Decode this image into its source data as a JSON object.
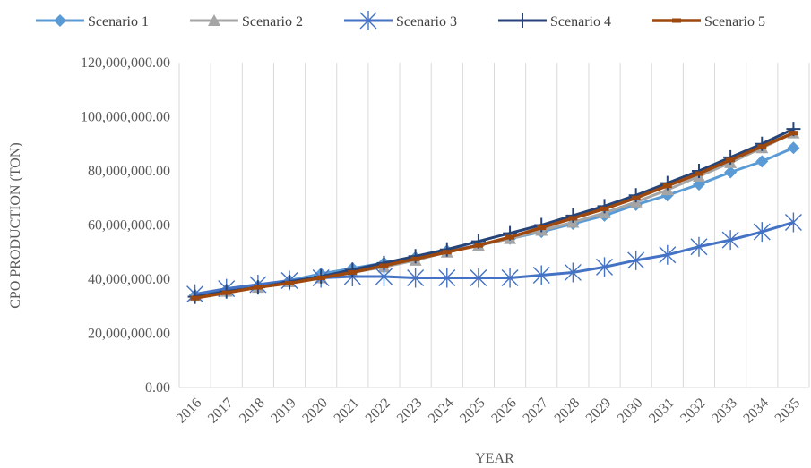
{
  "chart_data": {
    "type": "line",
    "title": "",
    "xlabel": "YEAR",
    "ylabel": "CPO PRODUCTION (TON)",
    "ylim": [
      0,
      120000000
    ],
    "y_ticks": [
      0,
      20000000,
      40000000,
      60000000,
      80000000,
      100000000,
      120000000
    ],
    "y_tick_labels": [
      "0.00",
      "20,000,000.00",
      "40,000,000.00",
      "60,000,000.00",
      "80,000,000.00",
      "100,000,000.00",
      "120,000,000.00"
    ],
    "grid": "vertical",
    "legend_position": "top",
    "categories": [
      "2016",
      "2017",
      "2018",
      "2019",
      "2020",
      "2021",
      "2022",
      "2023",
      "2024",
      "2025",
      "2026",
      "2027",
      "2028",
      "2029",
      "2030",
      "2031",
      "2032",
      "2033",
      "2034",
      "2035"
    ],
    "series": [
      {
        "name": "Scenario 1",
        "color": "#5B9BD5",
        "marker": "diamond",
        "values": [
          34000000,
          36000000,
          37500000,
          39500000,
          42000000,
          44000000,
          46000000,
          48000000,
          50500000,
          52500000,
          55000000,
          57500000,
          60500000,
          63500000,
          67500000,
          71000000,
          75000000,
          79500000,
          83500000,
          88500000
        ]
      },
      {
        "name": "Scenario 2",
        "color": "#A5A5A5",
        "marker": "triangle",
        "values": [
          34000000,
          35500000,
          37000000,
          39000000,
          40500000,
          42500000,
          44500000,
          47000000,
          50000000,
          52500000,
          55000000,
          58000000,
          61000000,
          64500000,
          68500000,
          73000000,
          78000000,
          83000000,
          88500000,
          94000000
        ]
      },
      {
        "name": "Scenario 3",
        "color": "#4472C4",
        "marker": "star",
        "values": [
          34500000,
          36500000,
          38000000,
          39500000,
          40500000,
          41000000,
          41000000,
          40500000,
          40500000,
          40500000,
          40500000,
          41500000,
          42500000,
          44500000,
          47000000,
          49000000,
          52000000,
          54500000,
          57500000,
          61000000
        ]
      },
      {
        "name": "Scenario 4",
        "color": "#264478",
        "marker": "plus",
        "values": [
          33500000,
          35500000,
          37000000,
          39000000,
          41000000,
          43500000,
          46000000,
          48500000,
          51000000,
          54000000,
          57000000,
          60000000,
          63500000,
          67000000,
          71000000,
          75500000,
          80000000,
          85000000,
          90000000,
          95500000
        ]
      },
      {
        "name": "Scenario 5",
        "color": "#9E480E",
        "marker": "dash",
        "values": [
          33000000,
          35000000,
          37000000,
          38500000,
          40500000,
          42500000,
          45000000,
          47500000,
          50000000,
          52500000,
          55500000,
          59000000,
          62500000,
          66000000,
          70000000,
          74500000,
          79000000,
          84000000,
          89000000,
          94000000
        ]
      }
    ]
  }
}
